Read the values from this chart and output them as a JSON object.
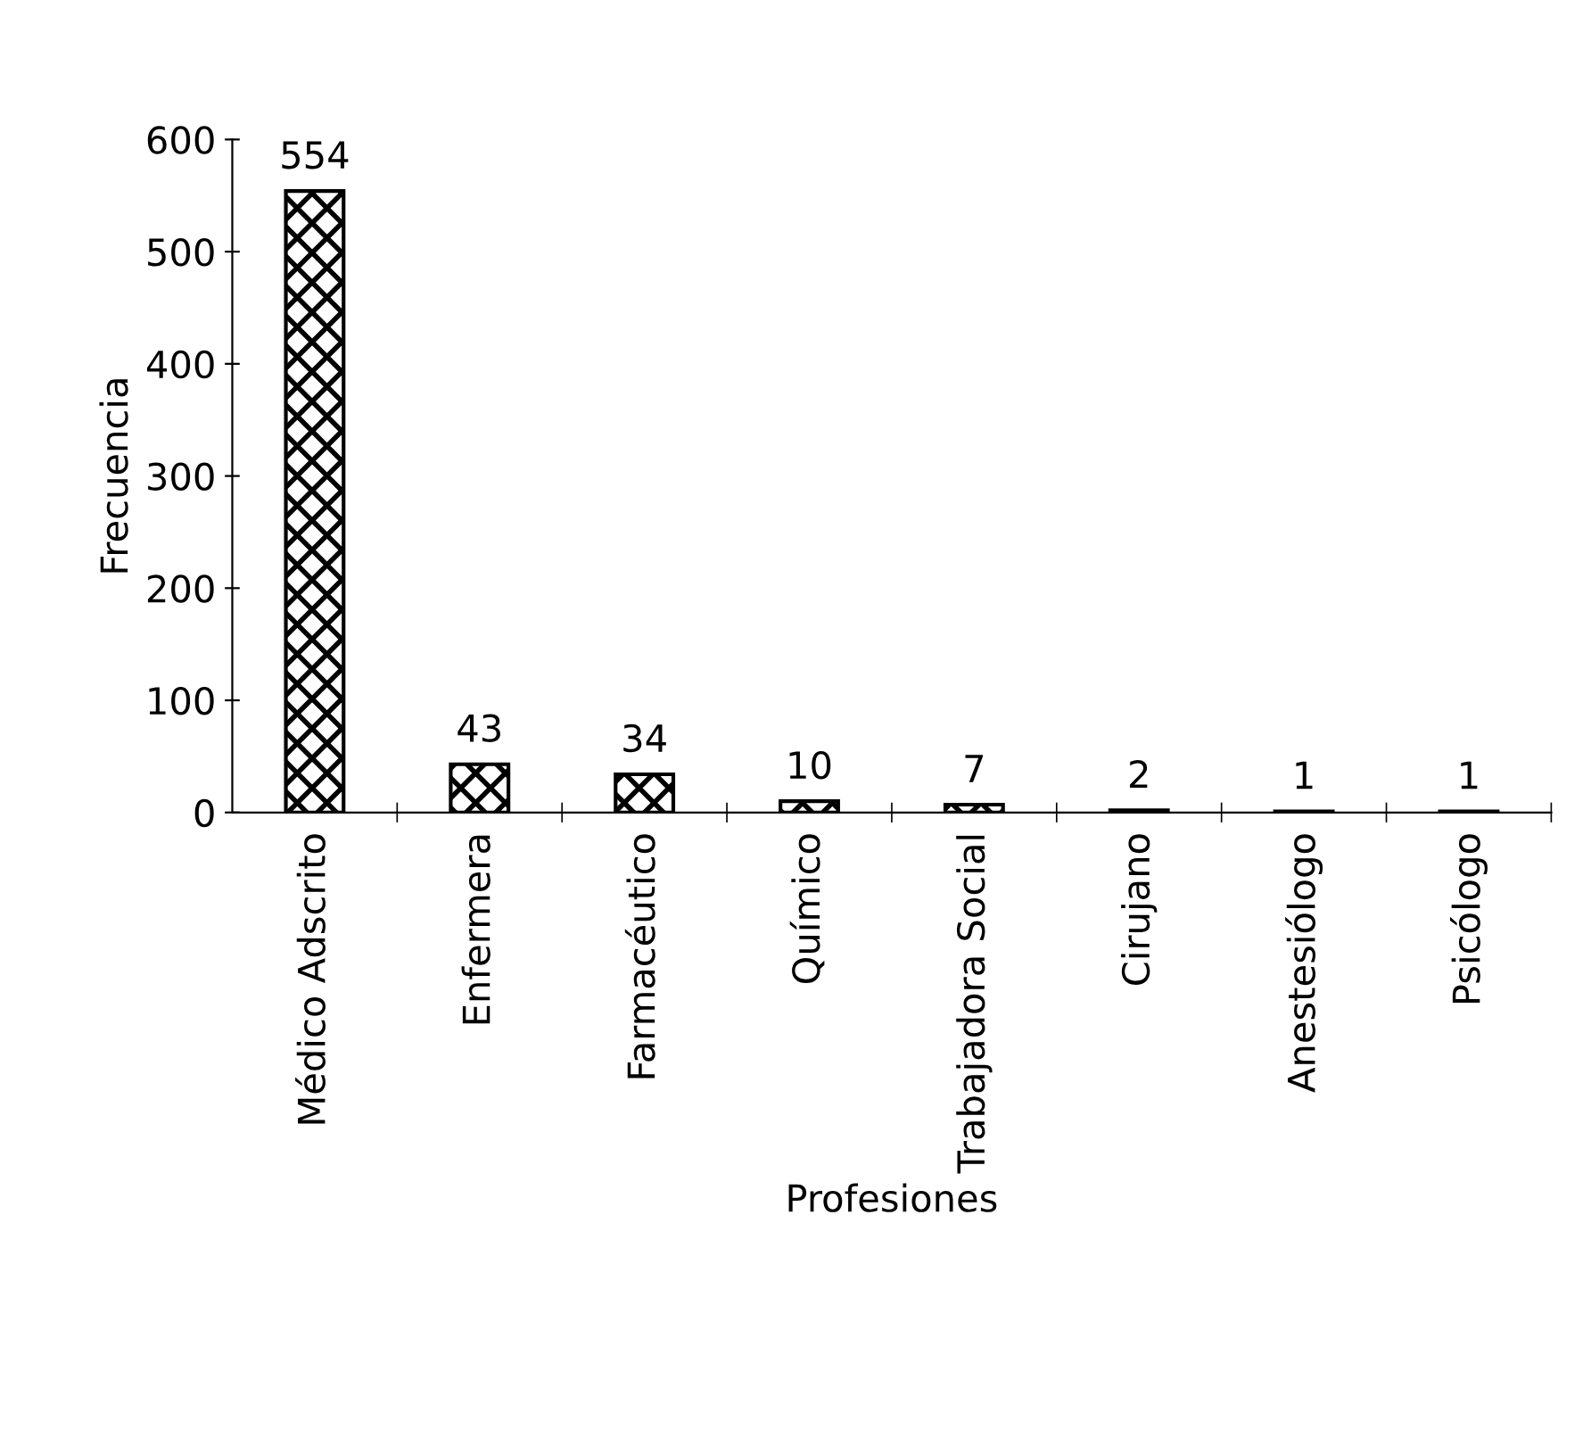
{
  "chart_data": {
    "type": "bar",
    "xlabel": "Profesiones",
    "ylabel": "Frecuencia",
    "categories": [
      "Médico Adscrito",
      "Enfermera",
      "Farmacéutico",
      "Químico",
      "Trabajadora Social",
      "Cirujano",
      "Anestesiólogo",
      "Psicólogo"
    ],
    "values": [
      554,
      43,
      34,
      10,
      7,
      2,
      1,
      1
    ],
    "color": "#000000",
    "ylim": [
      0,
      600
    ],
    "yticks": [
      0,
      100,
      200,
      300,
      400,
      500,
      600
    ],
    "grid": false,
    "data_labels": true
  }
}
